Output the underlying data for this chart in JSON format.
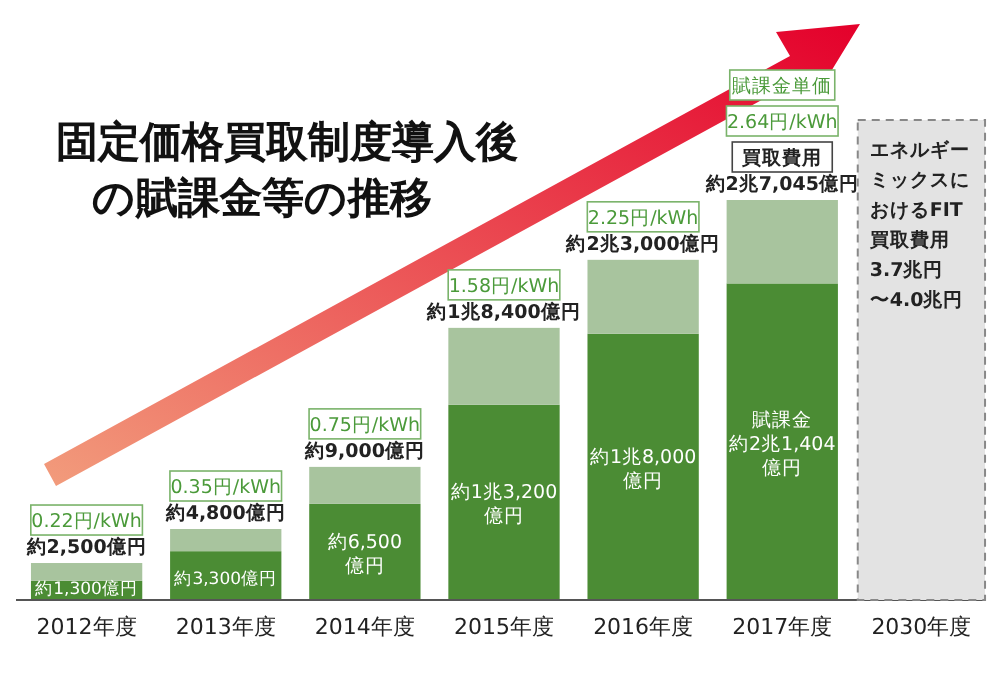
{
  "chart_data": {
    "type": "bar",
    "title": "固定価格買取制度導入後の賦課金等の推移",
    "stacked": true,
    "legend": false,
    "categories": [
      "2012年度",
      "2013年度",
      "2014年度",
      "2015年度",
      "2016年度",
      "2017年度",
      "2030年度"
    ],
    "series": [
      {
        "name": "賦課金",
        "color": "#4b8c34",
        "values": [
          1300,
          3300,
          6500,
          13200,
          18000,
          21404,
          null
        ],
        "value_labels": [
          "約1,300億円",
          "約3,300億円",
          "約6,500\n億円",
          "約1兆3,200\n億円",
          "約1兆8,000\n億円",
          "約2兆1,404\n億円",
          null
        ]
      },
      {
        "name": "買取費用",
        "color": "#a8c49e",
        "values": [
          1200,
          1500,
          2500,
          5200,
          5000,
          5641,
          null
        ]
      }
    ],
    "totals": [
      "約2,500億円",
      "約4,800億円",
      "約9,000億円",
      "約1兆8,400億円",
      "約2兆3,000億円",
      "約2兆7,045億円",
      null
    ],
    "annotations": [
      "0.22円/kWh",
      "0.35円/kWh",
      "0.75円/kWh",
      "1.58円/kWh",
      "2.25円/kWh",
      "2.64円/kWh",
      "賦課金単価"
    ],
    "bands": [
      {
        "axis": "x",
        "from": "2030年度",
        "to": "2030年度",
        "label": "エネルギーミックスにおけるFIT買取費用3.7兆円〜4.0兆円",
        "color": "#e3e3e3"
      }
    ]
  }
}
